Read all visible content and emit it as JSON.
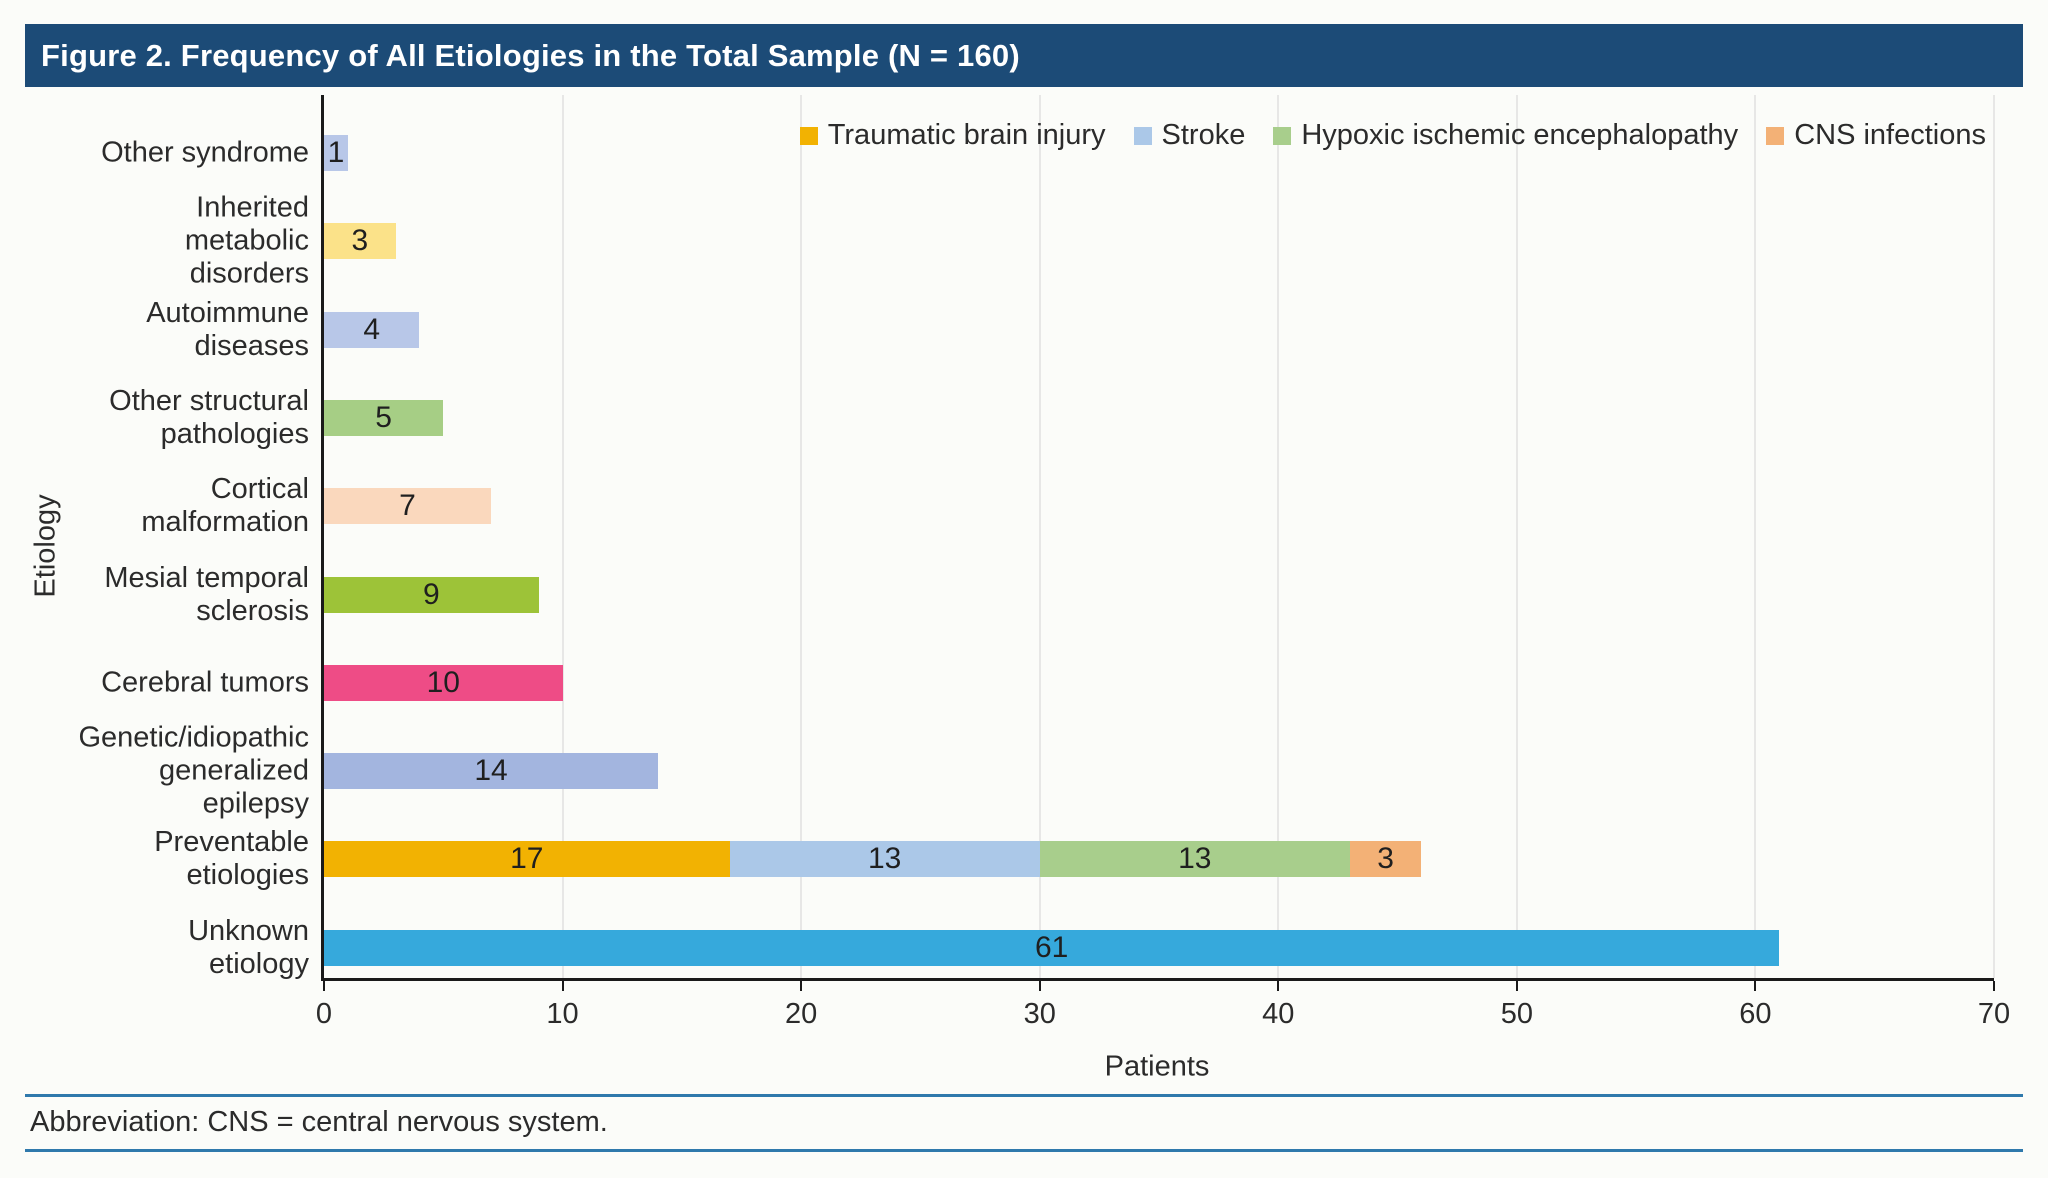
{
  "title": "Figure 2. Frequency of All Etiologies in the Total Sample (N = 160)",
  "footnote": "Abbreviation: CNS = central nervous system.",
  "colors": {
    "title_bar_bg": "#1C4B77",
    "title_text": "#FFFFFF",
    "axis_line": "#1A1A1A",
    "gridline": "#E7E7E6",
    "text": "#2B2B2B",
    "footnote_rule": "#2F79AC"
  },
  "chart_data": {
    "type": "bar",
    "orientation": "horizontal",
    "title": "Figure 2. Frequency of All Etiologies in the Total Sample (N = 160)",
    "xlabel": "Patients",
    "ylabel": "Etiology",
    "xlim": [
      0,
      70
    ],
    "xticks": [
      0,
      10,
      20,
      30,
      40,
      50,
      60,
      70
    ],
    "grid": "vertical",
    "legend_position": "top-right",
    "legend": [
      {
        "label": "Traumatic brain injury",
        "color": "#F2B202"
      },
      {
        "label": "Stroke",
        "color": "#ABC8E8"
      },
      {
        "label": "Hypoxic ischemic encephalopathy",
        "color": "#A8CE8C"
      },
      {
        "label": "CNS infections",
        "color": "#F3B176"
      }
    ],
    "categories": [
      {
        "label": "Other syndrome",
        "label_lines": [
          "Other syndrome"
        ],
        "total": 1,
        "segments": [
          {
            "value": 1,
            "color": "#B8C7E8"
          }
        ]
      },
      {
        "label": "Inherited metabolic disorders",
        "label_lines": [
          "Inherited",
          "metabolic",
          "disorders"
        ],
        "total": 3,
        "segments": [
          {
            "value": 3,
            "color": "#FBE289"
          }
        ]
      },
      {
        "label": "Autoimmune diseases",
        "label_lines": [
          "Autoimmune",
          "diseases"
        ],
        "total": 4,
        "segments": [
          {
            "value": 4,
            "color": "#B8C7E8"
          }
        ]
      },
      {
        "label": "Other structural pathologies",
        "label_lines": [
          "Other structural",
          "pathologies"
        ],
        "total": 5,
        "segments": [
          {
            "value": 5,
            "color": "#A6CE85"
          }
        ]
      },
      {
        "label": "Cortical malformation",
        "label_lines": [
          "Cortical",
          "malformation"
        ],
        "total": 7,
        "segments": [
          {
            "value": 7,
            "color": "#FAD8BD"
          }
        ]
      },
      {
        "label": "Mesial temporal sclerosis",
        "label_lines": [
          "Mesial temporal",
          "sclerosis"
        ],
        "total": 9,
        "segments": [
          {
            "value": 9,
            "color": "#9DC338"
          }
        ]
      },
      {
        "label": "Cerebral tumors",
        "label_lines": [
          "Cerebral tumors"
        ],
        "total": 10,
        "segments": [
          {
            "value": 10,
            "color": "#EE4C86"
          }
        ]
      },
      {
        "label": "Genetic/idiopathic generalized epilepsy",
        "label_lines": [
          "Genetic/idiopathic",
          "generalized",
          "epilepsy"
        ],
        "total": 14,
        "segments": [
          {
            "value": 14,
            "color": "#A3B5DF"
          }
        ]
      },
      {
        "label": "Preventable etiologies",
        "label_lines": [
          "Preventable",
          "etiologies"
        ],
        "total": 46,
        "segments": [
          {
            "series": "Traumatic brain injury",
            "value": 17,
            "color": "#F2B202"
          },
          {
            "series": "Stroke",
            "value": 13,
            "color": "#ABC8E8"
          },
          {
            "series": "Hypoxic ischemic encephalopathy",
            "value": 13,
            "color": "#A8CE8C"
          },
          {
            "series": "CNS infections",
            "value": 3,
            "color": "#F3B176"
          }
        ]
      },
      {
        "label": "Unknown etiology",
        "label_lines": [
          "Unknown",
          "etiology"
        ],
        "total": 61,
        "segments": [
          {
            "value": 61,
            "color": "#36A9DC"
          }
        ]
      }
    ]
  }
}
